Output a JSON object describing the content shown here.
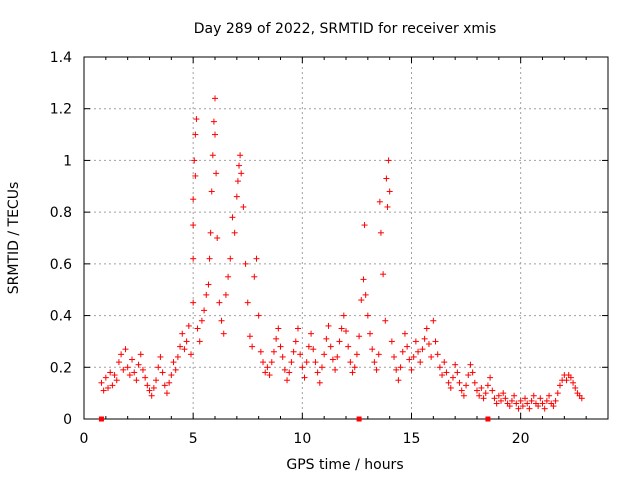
{
  "chart_data": {
    "type": "scatter",
    "title": "Day 289 of 2022, SRMTID for receiver xmis",
    "xlabel": "GPS time / hours",
    "ylabel": "SRMTID / TECUs",
    "xlim": [
      0,
      24
    ],
    "ylim": [
      0,
      1.4
    ],
    "grid": true,
    "xticks": [
      "0",
      "5",
      "10",
      "15",
      "20"
    ],
    "yticks": [
      "0",
      "0.2",
      "0.4",
      "0.6",
      "0.8",
      "1",
      "1.2",
      "1.4"
    ],
    "marker": "+",
    "color": "#ff0000",
    "baseline_markers_x": [
      0.8,
      12.6,
      18.5
    ],
    "series": [
      {
        "name": "SRMTID",
        "points": [
          [
            0.8,
            0.14
          ],
          [
            0.9,
            0.11
          ],
          [
            1.0,
            0.16
          ],
          [
            1.1,
            0.12
          ],
          [
            1.2,
            0.18
          ],
          [
            1.3,
            0.13
          ],
          [
            1.4,
            0.17
          ],
          [
            1.5,
            0.15
          ],
          [
            1.6,
            0.22
          ],
          [
            1.7,
            0.25
          ],
          [
            1.8,
            0.19
          ],
          [
            1.9,
            0.27
          ],
          [
            2.0,
            0.2
          ],
          [
            2.1,
            0.17
          ],
          [
            2.2,
            0.23
          ],
          [
            2.3,
            0.18
          ],
          [
            2.4,
            0.15
          ],
          [
            2.5,
            0.21
          ],
          [
            2.6,
            0.25
          ],
          [
            2.7,
            0.19
          ],
          [
            2.8,
            0.16
          ],
          [
            2.9,
            0.13
          ],
          [
            3.0,
            0.11
          ],
          [
            3.1,
            0.09
          ],
          [
            3.2,
            0.12
          ],
          [
            3.3,
            0.15
          ],
          [
            3.4,
            0.2
          ],
          [
            3.5,
            0.24
          ],
          [
            3.6,
            0.18
          ],
          [
            3.7,
            0.13
          ],
          [
            3.8,
            0.1
          ],
          [
            3.9,
            0.14
          ],
          [
            4.0,
            0.17
          ],
          [
            4.1,
            0.22
          ],
          [
            4.2,
            0.19
          ],
          [
            4.3,
            0.24
          ],
          [
            4.4,
            0.28
          ],
          [
            4.5,
            0.33
          ],
          [
            4.6,
            0.27
          ],
          [
            4.7,
            0.3
          ],
          [
            4.8,
            0.36
          ],
          [
            4.9,
            0.25
          ],
          [
            5.0,
            0.45
          ],
          [
            5.0,
            0.62
          ],
          [
            5.0,
            0.85
          ],
          [
            5.05,
            1.0
          ],
          [
            5.1,
            1.1
          ],
          [
            5.15,
            1.16
          ],
          [
            5.1,
            0.94
          ],
          [
            5.0,
            0.75
          ],
          [
            5.2,
            0.35
          ],
          [
            5.3,
            0.3
          ],
          [
            5.4,
            0.38
          ],
          [
            5.5,
            0.42
          ],
          [
            5.6,
            0.48
          ],
          [
            5.7,
            0.52
          ],
          [
            5.75,
            0.62
          ],
          [
            5.8,
            0.72
          ],
          [
            5.85,
            0.88
          ],
          [
            5.9,
            1.02
          ],
          [
            5.95,
            1.15
          ],
          [
            6.0,
            1.24
          ],
          [
            6.0,
            1.1
          ],
          [
            6.05,
            0.95
          ],
          [
            6.1,
            0.7
          ],
          [
            6.2,
            0.45
          ],
          [
            6.3,
            0.38
          ],
          [
            6.4,
            0.33
          ],
          [
            6.5,
            0.48
          ],
          [
            6.6,
            0.55
          ],
          [
            6.7,
            0.62
          ],
          [
            6.8,
            0.78
          ],
          [
            6.9,
            0.72
          ],
          [
            7.0,
            0.86
          ],
          [
            7.05,
            0.92
          ],
          [
            7.1,
            0.98
          ],
          [
            7.15,
            1.02
          ],
          [
            7.2,
            0.95
          ],
          [
            7.3,
            0.82
          ],
          [
            7.4,
            0.6
          ],
          [
            7.5,
            0.45
          ],
          [
            7.6,
            0.32
          ],
          [
            7.7,
            0.28
          ],
          [
            7.8,
            0.55
          ],
          [
            7.9,
            0.62
          ],
          [
            8.0,
            0.4
          ],
          [
            8.1,
            0.26
          ],
          [
            8.2,
            0.22
          ],
          [
            8.3,
            0.18
          ],
          [
            8.4,
            0.2
          ],
          [
            8.5,
            0.17
          ],
          [
            8.6,
            0.22
          ],
          [
            8.7,
            0.26
          ],
          [
            8.8,
            0.31
          ],
          [
            8.9,
            0.35
          ],
          [
            9.0,
            0.28
          ],
          [
            9.1,
            0.24
          ],
          [
            9.2,
            0.19
          ],
          [
            9.3,
            0.15
          ],
          [
            9.4,
            0.18
          ],
          [
            9.5,
            0.22
          ],
          [
            9.6,
            0.26
          ],
          [
            9.7,
            0.3
          ],
          [
            9.8,
            0.35
          ],
          [
            9.9,
            0.25
          ],
          [
            10.0,
            0.2
          ],
          [
            10.1,
            0.16
          ],
          [
            10.2,
            0.22
          ],
          [
            10.3,
            0.28
          ],
          [
            10.4,
            0.33
          ],
          [
            10.5,
            0.27
          ],
          [
            10.6,
            0.22
          ],
          [
            10.7,
            0.18
          ],
          [
            10.8,
            0.14
          ],
          [
            10.9,
            0.2
          ],
          [
            11.0,
            0.25
          ],
          [
            11.1,
            0.31
          ],
          [
            11.2,
            0.36
          ],
          [
            11.3,
            0.28
          ],
          [
            11.4,
            0.23
          ],
          [
            11.5,
            0.19
          ],
          [
            11.6,
            0.24
          ],
          [
            11.7,
            0.3
          ],
          [
            11.8,
            0.35
          ],
          [
            11.9,
            0.4
          ],
          [
            12.0,
            0.34
          ],
          [
            12.1,
            0.28
          ],
          [
            12.2,
            0.22
          ],
          [
            12.3,
            0.18
          ],
          [
            12.4,
            0.2
          ],
          [
            12.5,
            0.25
          ],
          [
            12.6,
            0.32
          ],
          [
            12.7,
            0.46
          ],
          [
            12.8,
            0.54
          ],
          [
            12.85,
            0.75
          ],
          [
            12.9,
            0.48
          ],
          [
            13.0,
            0.4
          ],
          [
            13.1,
            0.33
          ],
          [
            13.2,
            0.27
          ],
          [
            13.3,
            0.22
          ],
          [
            13.4,
            0.19
          ],
          [
            13.5,
            0.25
          ],
          [
            13.55,
            0.84
          ],
          [
            13.6,
            0.72
          ],
          [
            13.7,
            0.56
          ],
          [
            13.8,
            0.38
          ],
          [
            13.85,
            0.93
          ],
          [
            13.9,
            0.82
          ],
          [
            13.95,
            1.0
          ],
          [
            14.0,
            0.88
          ],
          [
            14.1,
            0.3
          ],
          [
            14.2,
            0.24
          ],
          [
            14.3,
            0.19
          ],
          [
            14.4,
            0.15
          ],
          [
            14.5,
            0.2
          ],
          [
            14.6,
            0.26
          ],
          [
            14.7,
            0.33
          ],
          [
            14.8,
            0.28
          ],
          [
            14.9,
            0.23
          ],
          [
            15.0,
            0.19
          ],
          [
            15.1,
            0.24
          ],
          [
            15.2,
            0.3
          ],
          [
            15.3,
            0.26
          ],
          [
            15.4,
            0.22
          ],
          [
            15.5,
            0.27
          ],
          [
            15.6,
            0.31
          ],
          [
            15.7,
            0.35
          ],
          [
            15.8,
            0.29
          ],
          [
            15.9,
            0.24
          ],
          [
            16.0,
            0.38
          ],
          [
            16.1,
            0.3
          ],
          [
            16.2,
            0.25
          ],
          [
            16.3,
            0.2
          ],
          [
            16.4,
            0.17
          ],
          [
            16.5,
            0.22
          ],
          [
            16.6,
            0.18
          ],
          [
            16.7,
            0.14
          ],
          [
            16.8,
            0.12
          ],
          [
            16.9,
            0.16
          ],
          [
            17.0,
            0.21
          ],
          [
            17.1,
            0.18
          ],
          [
            17.2,
            0.14
          ],
          [
            17.3,
            0.11
          ],
          [
            17.4,
            0.09
          ],
          [
            17.5,
            0.13
          ],
          [
            17.6,
            0.17
          ],
          [
            17.7,
            0.21
          ],
          [
            17.8,
            0.18
          ],
          [
            17.9,
            0.14
          ],
          [
            18.0,
            0.11
          ],
          [
            18.1,
            0.09
          ],
          [
            18.2,
            0.12
          ],
          [
            18.3,
            0.08
          ],
          [
            18.4,
            0.1
          ],
          [
            18.5,
            0.13
          ],
          [
            18.6,
            0.16
          ],
          [
            18.7,
            0.11
          ],
          [
            18.8,
            0.08
          ],
          [
            18.9,
            0.06
          ],
          [
            19.0,
            0.09
          ],
          [
            19.1,
            0.07
          ],
          [
            19.2,
            0.1
          ],
          [
            19.3,
            0.08
          ],
          [
            19.4,
            0.06
          ],
          [
            19.5,
            0.05
          ],
          [
            19.6,
            0.07
          ],
          [
            19.7,
            0.09
          ],
          [
            19.8,
            0.06
          ],
          [
            19.9,
            0.04
          ],
          [
            20.0,
            0.07
          ],
          [
            20.1,
            0.05
          ],
          [
            20.2,
            0.08
          ],
          [
            20.3,
            0.06
          ],
          [
            20.4,
            0.04
          ],
          [
            20.5,
            0.07
          ],
          [
            20.6,
            0.09
          ],
          [
            20.7,
            0.06
          ],
          [
            20.8,
            0.05
          ],
          [
            20.9,
            0.08
          ],
          [
            21.0,
            0.06
          ],
          [
            21.1,
            0.04
          ],
          [
            21.2,
            0.07
          ],
          [
            21.3,
            0.09
          ],
          [
            21.4,
            0.06
          ],
          [
            21.5,
            0.05
          ],
          [
            21.6,
            0.07
          ],
          [
            21.7,
            0.1
          ],
          [
            21.8,
            0.13
          ],
          [
            21.9,
            0.15
          ],
          [
            22.0,
            0.17
          ],
          [
            22.1,
            0.15
          ],
          [
            22.2,
            0.17
          ],
          [
            22.3,
            0.16
          ],
          [
            22.4,
            0.14
          ],
          [
            22.5,
            0.12
          ],
          [
            22.6,
            0.1
          ],
          [
            22.7,
            0.09
          ],
          [
            22.8,
            0.08
          ]
        ]
      }
    ]
  }
}
